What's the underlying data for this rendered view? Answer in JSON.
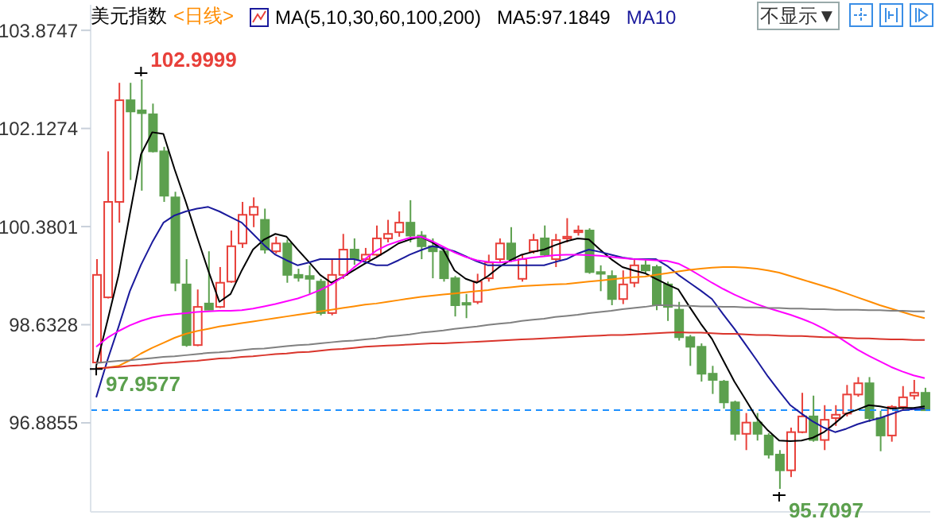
{
  "chart_data": {
    "type": "candlestick",
    "title": "美元指数",
    "subtitle": "<日线>",
    "categories": [
      null,
      null,
      null,
      null,
      null,
      null,
      null,
      null,
      null,
      null,
      null,
      null,
      null,
      null,
      null,
      null,
      null,
      null,
      null,
      null,
      null,
      null,
      null,
      null,
      null,
      null,
      null,
      null,
      null,
      null,
      null,
      null,
      null,
      null,
      null,
      null,
      null,
      null,
      null,
      null,
      null,
      null,
      null,
      null,
      null,
      null,
      null,
      null,
      null,
      null,
      null,
      null,
      null,
      null,
      null,
      null,
      null,
      null,
      null,
      null,
      null,
      null,
      null,
      null,
      null,
      null,
      null,
      null,
      null,
      null,
      null,
      null,
      null,
      null,
      null
    ],
    "ohlc": [
      [
        97.96,
        99.8,
        97.9577,
        99.52
      ],
      [
        99.12,
        101.72,
        99.1,
        100.82
      ],
      [
        100.82,
        102.94,
        100.45,
        102.63
      ],
      [
        102.63,
        102.94,
        101.21,
        102.43
      ],
      [
        102.45,
        102.9999,
        101.02,
        102.4
      ],
      [
        102.38,
        102.57,
        101.7,
        101.72
      ],
      [
        101.72,
        101.8,
        100.82,
        100.93
      ],
      [
        100.9,
        101.0,
        99.23,
        99.38
      ],
      [
        99.35,
        99.8,
        98.24,
        98.27
      ],
      [
        98.27,
        99.26,
        98.25,
        98.95
      ],
      [
        99.01,
        99.94,
        98.89,
        98.9
      ],
      [
        98.95,
        99.66,
        98.93,
        99.38
      ],
      [
        99.4,
        100.31,
        99.38,
        100.03
      ],
      [
        100.08,
        100.82,
        100.0,
        100.59
      ],
      [
        100.59,
        100.9,
        100.37,
        100.73
      ],
      [
        100.5,
        100.7,
        99.9,
        99.97
      ],
      [
        99.94,
        100.2,
        99.9,
        100.08
      ],
      [
        100.08,
        100.15,
        99.38,
        99.52
      ],
      [
        99.52,
        99.63,
        99.4,
        99.47
      ],
      [
        99.5,
        99.69,
        99.18,
        99.45
      ],
      [
        99.4,
        99.45,
        98.8,
        98.84
      ],
      [
        98.84,
        99.8,
        98.8,
        99.52
      ],
      [
        99.52,
        100.25,
        99.45,
        99.97
      ],
      [
        99.97,
        100.17,
        99.7,
        99.8
      ],
      [
        99.8,
        100.0,
        99.75,
        99.88
      ],
      [
        99.88,
        100.4,
        99.85,
        100.17
      ],
      [
        100.17,
        100.5,
        100.1,
        100.25
      ],
      [
        100.28,
        100.65,
        100.2,
        100.45
      ],
      [
        100.45,
        100.85,
        100.1,
        100.22
      ],
      [
        100.22,
        100.3,
        99.8,
        100.03
      ],
      [
        100.03,
        100.17,
        99.46,
        99.94
      ],
      [
        99.94,
        100.0,
        99.4,
        99.46
      ],
      [
        99.46,
        99.5,
        98.78,
        98.98
      ],
      [
        99.02,
        99.18,
        98.75,
        98.99
      ],
      [
        99.04,
        99.54,
        99.0,
        99.4
      ],
      [
        99.46,
        99.88,
        99.4,
        99.74
      ],
      [
        99.8,
        100.17,
        99.75,
        100.08
      ],
      [
        100.08,
        100.37,
        99.75,
        99.8
      ],
      [
        99.45,
        99.88,
        99.4,
        99.8
      ],
      [
        99.94,
        100.25,
        99.9,
        100.14
      ],
      [
        100.17,
        100.4,
        99.85,
        99.88
      ],
      [
        99.8,
        100.25,
        99.66,
        100.14
      ],
      [
        100.17,
        100.53,
        100.1,
        100.2
      ],
      [
        100.28,
        100.4,
        100.22,
        100.31
      ],
      [
        100.31,
        100.35,
        99.54,
        99.57
      ],
      [
        99.57,
        99.69,
        99.23,
        99.54
      ],
      [
        99.5,
        99.6,
        98.98,
        99.09
      ],
      [
        99.09,
        99.6,
        99.0,
        99.35
      ],
      [
        99.38,
        99.8,
        99.3,
        99.69
      ],
      [
        99.69,
        99.8,
        99.55,
        99.6
      ],
      [
        99.66,
        99.7,
        98.89,
        98.98
      ],
      [
        99.35,
        99.4,
        98.7,
        98.95
      ],
      [
        98.9,
        99.04,
        98.35,
        98.41
      ],
      [
        98.41,
        98.45,
        97.9,
        98.24
      ],
      [
        98.24,
        98.3,
        97.62,
        97.76
      ],
      [
        97.76,
        97.9,
        97.4,
        97.65
      ],
      [
        97.62,
        97.65,
        97.14,
        97.25
      ],
      [
        97.25,
        97.28,
        96.57,
        96.69
      ],
      [
        96.69,
        97.06,
        96.4,
        96.89
      ],
      [
        96.89,
        97.06,
        96.57,
        96.69
      ],
      [
        96.66,
        96.7,
        96.25,
        96.32
      ],
      [
        96.32,
        96.4,
        95.7097,
        96.04
      ],
      [
        96.04,
        96.8,
        95.92,
        96.72
      ],
      [
        96.72,
        97.42,
        96.7,
        97.0
      ],
      [
        97.0,
        97.37,
        96.55,
        96.58
      ],
      [
        96.58,
        97.2,
        96.4,
        96.94
      ],
      [
        96.97,
        97.2,
        96.83,
        97.03
      ],
      [
        97.05,
        97.56,
        97.0,
        97.39
      ],
      [
        97.39,
        97.7,
        97.35,
        97.59
      ],
      [
        97.59,
        97.7,
        96.9,
        96.97
      ],
      [
        96.97,
        97.1,
        96.38,
        96.66
      ],
      [
        96.66,
        97.2,
        96.55,
        97.17
      ],
      [
        97.17,
        97.54,
        97.1,
        97.34
      ],
      [
        97.37,
        97.65,
        97.3,
        97.42
      ],
      [
        97.42,
        97.51,
        97.1,
        97.11
      ]
    ],
    "colors": [
      "#e8403a",
      "#e8403a",
      "#e8403a",
      "#5ca04e",
      "#5ca04e",
      "#5ca04e",
      "#5ca04e",
      "#5ca04e",
      "#5ca04e",
      "#e8403a",
      "#5ca04e",
      "#e8403a",
      "#e8403a",
      "#e8403a",
      "#e8403a",
      "#5ca04e",
      "#e8403a",
      "#5ca04e",
      "#5ca04e",
      "#5ca04e",
      "#5ca04e",
      "#e8403a",
      "#e8403a",
      "#5ca04e",
      "#e8403a",
      "#e8403a",
      "#e8403a",
      "#e8403a",
      "#5ca04e",
      "#5ca04e",
      "#5ca04e",
      "#5ca04e",
      "#5ca04e",
      "#5ca04e",
      "#e8403a",
      "#e8403a",
      "#e8403a",
      "#5ca04e",
      "#e8403a",
      "#e8403a",
      "#5ca04e",
      "#e8403a",
      "#e8403a",
      "#e8403a",
      "#5ca04e",
      "#5ca04e",
      "#5ca04e",
      "#e8403a",
      "#e8403a",
      "#5ca04e",
      "#5ca04e",
      "#5ca04e",
      "#5ca04e",
      "#5ca04e",
      "#5ca04e",
      "#5ca04e",
      "#5ca04e",
      "#5ca04e",
      "#e8403a",
      "#5ca04e",
      "#5ca04e",
      "#5ca04e",
      "#e8403a",
      "#e8403a",
      "#5ca04e",
      "#e8403a",
      "#e8403a",
      "#e8403a",
      "#e8403a",
      "#5ca04e",
      "#5ca04e",
      "#e8403a",
      "#e8403a",
      "#e8403a",
      "#5ca04e"
    ],
    "series": [
      {
        "type": "line",
        "name": "MA5:97.1849",
        "color": "#000000",
        "values": [
          97.9,
          98.7,
          99.52,
          100.6,
          101.67,
          102.06,
          102.03,
          101.4,
          100.82,
          100.2,
          99.6,
          99.04,
          99.18,
          99.6,
          99.97,
          100.15,
          100.25,
          100.2,
          99.97,
          99.75,
          99.52,
          99.38,
          99.48,
          99.6,
          99.72,
          99.83,
          99.95,
          100.08,
          100.15,
          100.2,
          100.1,
          99.97,
          99.6,
          99.45,
          99.38,
          99.5,
          99.66,
          99.78,
          99.88,
          99.93,
          99.97,
          100.05,
          100.12,
          100.17,
          100.15,
          99.97,
          99.8,
          99.66,
          99.6,
          99.55,
          99.45,
          99.35,
          99.26,
          98.95,
          98.65,
          98.38,
          98.0,
          97.62,
          97.3,
          96.97,
          96.75,
          96.57,
          96.56,
          96.57,
          96.62,
          96.72,
          96.88,
          97.05,
          97.12,
          97.2,
          97.18,
          97.14,
          97.15,
          97.15,
          97.18
        ]
      },
      {
        "type": "line",
        "name": "MA10",
        "color": "#1a1a9c",
        "values": [
          97.34,
          98.0,
          98.6,
          99.23,
          99.7,
          100.1,
          100.45,
          100.58,
          100.65,
          100.7,
          100.73,
          100.65,
          100.55,
          100.45,
          100.25,
          100.05,
          99.88,
          99.78,
          99.69,
          99.74,
          99.8,
          99.8,
          99.8,
          99.8,
          99.75,
          99.69,
          99.69,
          99.78,
          99.88,
          99.96,
          100.03,
          100.0,
          99.94,
          99.85,
          99.76,
          99.69,
          99.69,
          99.69,
          99.69,
          99.69,
          99.69,
          99.75,
          99.8,
          99.9,
          99.97,
          99.93,
          99.88,
          99.83,
          99.8,
          99.8,
          99.8,
          99.68,
          99.52,
          99.38,
          99.24,
          99.09,
          98.82,
          98.56,
          98.28,
          98.0,
          97.71,
          97.45,
          97.2,
          97.05,
          96.91,
          96.8,
          96.72,
          96.78,
          96.86,
          96.92,
          96.97,
          97.04,
          97.11,
          97.13,
          97.14
        ]
      },
      {
        "type": "line",
        "color": "#ff00ff",
        "values": [
          98.24,
          98.4,
          98.52,
          98.62,
          98.7,
          98.76,
          98.8,
          98.82,
          98.84,
          98.86,
          98.87,
          98.88,
          98.88,
          98.89,
          98.92,
          98.96,
          99.0,
          99.05,
          99.1,
          99.17,
          99.25,
          99.35,
          99.48,
          99.65,
          99.8,
          99.95,
          100.05,
          100.12,
          100.18,
          100.2,
          100.12,
          100.02,
          99.92,
          99.84,
          99.78,
          99.75,
          99.74,
          99.76,
          99.8,
          99.83,
          99.85,
          99.87,
          99.88,
          99.88,
          99.87,
          99.86,
          99.84,
          99.82,
          99.8,
          99.79,
          99.78,
          99.77,
          99.72,
          99.62,
          99.5,
          99.38,
          99.27,
          99.17,
          99.08,
          99.0,
          98.93,
          98.87,
          98.81,
          98.74,
          98.66,
          98.56,
          98.45,
          98.32,
          98.19,
          98.08,
          97.98,
          97.88,
          97.8,
          97.73,
          97.68
        ]
      },
      {
        "type": "line",
        "color": "#ff8c00",
        "values": [
          97.85,
          97.87,
          97.9,
          98.0,
          98.12,
          98.22,
          98.31,
          98.4,
          98.47,
          98.52,
          98.56,
          98.6,
          98.63,
          98.66,
          98.69,
          98.72,
          98.75,
          98.78,
          98.81,
          98.84,
          98.87,
          98.9,
          98.93,
          98.96,
          98.99,
          99.01,
          99.04,
          99.07,
          99.1,
          99.13,
          99.15,
          99.17,
          99.19,
          99.21,
          99.23,
          99.25,
          99.28,
          99.3,
          99.32,
          99.33,
          99.34,
          99.35,
          99.36,
          99.38,
          99.4,
          99.42,
          99.44,
          99.46,
          99.48,
          99.49,
          99.52,
          99.55,
          99.58,
          99.61,
          99.63,
          99.65,
          99.66,
          99.66,
          99.65,
          99.63,
          99.6,
          99.56,
          99.5,
          99.44,
          99.38,
          99.32,
          99.26,
          99.19,
          99.12,
          99.05,
          98.98,
          98.92,
          98.86,
          98.8,
          98.75
        ]
      },
      {
        "type": "line",
        "color": "#808080",
        "values": [
          97.95,
          97.97,
          97.99,
          98.0,
          98.02,
          98.04,
          98.06,
          98.07,
          98.09,
          98.11,
          98.13,
          98.14,
          98.16,
          98.18,
          98.2,
          98.21,
          98.23,
          98.25,
          98.27,
          98.28,
          98.3,
          98.32,
          98.34,
          98.35,
          98.37,
          98.39,
          98.42,
          98.44,
          98.46,
          98.49,
          98.51,
          98.53,
          98.56,
          98.58,
          98.6,
          98.63,
          98.65,
          98.67,
          98.7,
          98.72,
          98.74,
          98.77,
          98.79,
          98.81,
          98.84,
          98.86,
          98.88,
          98.91,
          98.93,
          98.95,
          98.98,
          98.98,
          98.97,
          98.97,
          98.96,
          98.96,
          98.95,
          98.95,
          98.94,
          98.94,
          98.93,
          98.93,
          98.92,
          98.92,
          98.91,
          98.91,
          98.9,
          98.9,
          98.9,
          98.89,
          98.89,
          98.88,
          98.88,
          98.87,
          98.87
        ]
      },
      {
        "type": "line",
        "color": "#d9342b",
        "values": [
          97.85,
          97.87,
          97.88,
          97.9,
          97.91,
          97.93,
          97.95,
          97.96,
          97.98,
          97.99,
          98.01,
          98.03,
          98.04,
          98.06,
          98.07,
          98.09,
          98.11,
          98.12,
          98.14,
          98.15,
          98.17,
          98.19,
          98.2,
          98.22,
          98.24,
          98.25,
          98.26,
          98.27,
          98.28,
          98.29,
          98.3,
          98.3,
          98.31,
          98.32,
          98.33,
          98.34,
          98.35,
          98.36,
          98.37,
          98.38,
          98.39,
          98.4,
          98.41,
          98.42,
          98.43,
          98.44,
          98.45,
          98.45,
          98.46,
          98.47,
          98.48,
          98.49,
          98.5,
          98.49,
          98.49,
          98.48,
          98.47,
          98.47,
          98.46,
          98.45,
          98.45,
          98.44,
          98.43,
          98.43,
          98.42,
          98.41,
          98.41,
          98.4,
          98.39,
          98.39,
          98.38,
          98.37,
          98.37,
          98.36,
          98.36
        ]
      }
    ],
    "ylim": [
      95.3,
      104.33
    ],
    "yticks": [
      103.8747,
      102.1274,
      100.3801,
      98.6328,
      96.8855
    ],
    "tick_labels": "y",
    "legend": "top",
    "line_style": "solid",
    "ref_lines": [
      {
        "axis": "y",
        "value": 97.11,
        "color": "#1e90ff",
        "line_style": "dashed"
      }
    ],
    "annotations": [
      "MA(5,10,30,60,100,200)",
      "不显示▼",
      "102.9999",
      "97.9577",
      "95.7097"
    ]
  }
}
